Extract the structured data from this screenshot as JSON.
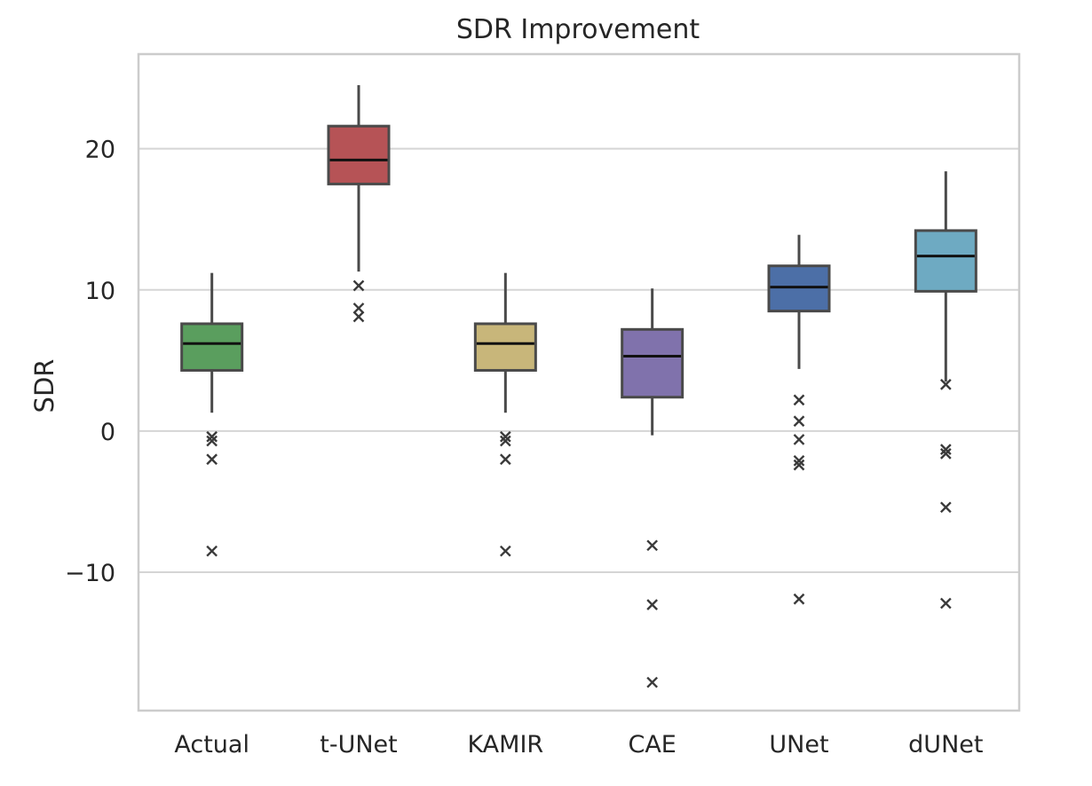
{
  "chart_data": {
    "type": "box",
    "title": "SDR Improvement",
    "xlabel": "",
    "ylabel": "SDR",
    "ylim": [
      -19.8,
      26.7
    ],
    "yticks": [
      20,
      10,
      0,
      -10
    ],
    "ytick_labels": [
      "20",
      "10",
      "0",
      "−10"
    ],
    "grid": "horizontal",
    "categories": [
      "Actual",
      "t-UNet",
      "KAMIR",
      "CAE",
      "UNet",
      "dUNet"
    ],
    "boxes": [
      {
        "name": "Actual",
        "color": "#5a9e5e",
        "whisker_low": 1.3,
        "q1": 4.3,
        "median": 6.2,
        "q3": 7.6,
        "whisker_high": 11.2,
        "outliers": [
          -0.4,
          -0.7,
          -2.0,
          -8.5
        ]
      },
      {
        "name": "t-UNet",
        "color": "#b65356",
        "whisker_low": 11.3,
        "q1": 17.5,
        "median": 19.2,
        "q3": 21.6,
        "whisker_high": 24.5,
        "outliers": [
          10.3,
          8.7,
          8.1
        ]
      },
      {
        "name": "KAMIR",
        "color": "#c8b67a",
        "whisker_low": 1.3,
        "q1": 4.3,
        "median": 6.2,
        "q3": 7.6,
        "whisker_high": 11.2,
        "outliers": [
          -0.4,
          -0.7,
          -2.0,
          -8.5
        ]
      },
      {
        "name": "CAE",
        "color": "#8072ac",
        "whisker_low": -0.3,
        "q1": 2.4,
        "median": 5.3,
        "q3": 7.2,
        "whisker_high": 10.1,
        "outliers": [
          -8.1,
          -12.3,
          -17.8
        ]
      },
      {
        "name": "UNet",
        "color": "#4c6fa7",
        "whisker_low": 4.4,
        "q1": 8.5,
        "median": 10.2,
        "q3": 11.7,
        "whisker_high": 13.9,
        "outliers": [
          2.2,
          0.7,
          -0.6,
          -2.1,
          -2.4,
          -11.9
        ]
      },
      {
        "name": "dUNet",
        "color": "#6eaac2",
        "whisker_low": 3.5,
        "q1": 9.9,
        "median": 12.4,
        "q3": 14.2,
        "whisker_high": 18.4,
        "outliers": [
          3.3,
          -1.3,
          -1.6,
          -5.4,
          -12.2
        ]
      }
    ]
  }
}
